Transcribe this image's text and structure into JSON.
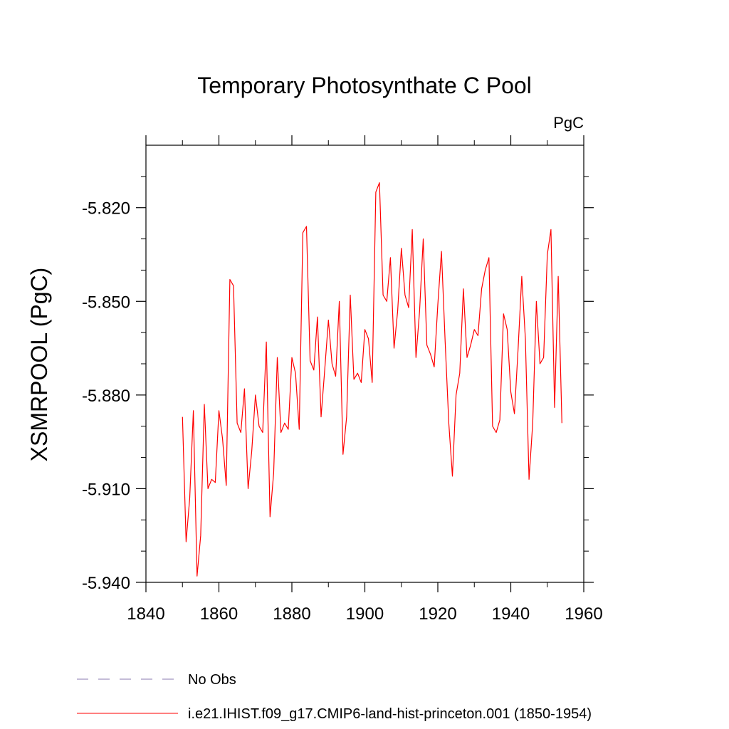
{
  "chart_data": {
    "type": "line",
    "title": "Temporary Photosynthate C Pool",
    "units": "PgC",
    "ylabel": "XSMRPOOL  (PgC)",
    "xlabel": "",
    "xlim": [
      1840,
      1960
    ],
    "ylim": [
      -5.94,
      -5.8
    ],
    "x_ticks": [
      1840,
      1860,
      1880,
      1900,
      1920,
      1940,
      1960
    ],
    "x_tick_labels": [
      "1840",
      "1860",
      "1880",
      "1900",
      "1920",
      "1940",
      "1960"
    ],
    "y_ticks": [
      -5.82,
      -5.85,
      -5.88,
      -5.91,
      -5.94
    ],
    "y_tick_labels": [
      "-5.820",
      "-5.850",
      "-5.880",
      "-5.910",
      "-5.940"
    ],
    "grid": false,
    "legend_position": "bottom",
    "series": [
      {
        "name": "No Obs",
        "color": "#8878b0",
        "style": "dashed",
        "x": [],
        "y": []
      },
      {
        "name": "i.e21.IHIST.f09_g17.CMIP6-land-hist-princeton.001 (1850-1954)",
        "color": "#ff0000",
        "style": "solid",
        "x": [
          1850,
          1851,
          1852,
          1853,
          1854,
          1855,
          1856,
          1857,
          1858,
          1859,
          1860,
          1861,
          1862,
          1863,
          1864,
          1865,
          1866,
          1867,
          1868,
          1869,
          1870,
          1871,
          1872,
          1873,
          1874,
          1875,
          1876,
          1877,
          1878,
          1879,
          1880,
          1881,
          1882,
          1883,
          1884,
          1885,
          1886,
          1887,
          1888,
          1889,
          1890,
          1891,
          1892,
          1893,
          1894,
          1895,
          1896,
          1897,
          1898,
          1899,
          1900,
          1901,
          1902,
          1903,
          1904,
          1905,
          1906,
          1907,
          1908,
          1909,
          1910,
          1911,
          1912,
          1913,
          1914,
          1915,
          1916,
          1917,
          1918,
          1919,
          1920,
          1921,
          1922,
          1923,
          1924,
          1925,
          1926,
          1927,
          1928,
          1929,
          1930,
          1931,
          1932,
          1933,
          1934,
          1935,
          1936,
          1937,
          1938,
          1939,
          1940,
          1941,
          1942,
          1943,
          1944,
          1945,
          1946,
          1947,
          1948,
          1949,
          1950,
          1951,
          1952,
          1953,
          1954
        ],
        "y": [
          -5.887,
          -5.927,
          -5.913,
          -5.885,
          -5.938,
          -5.925,
          -5.883,
          -5.91,
          -5.907,
          -5.908,
          -5.885,
          -5.894,
          -5.909,
          -5.843,
          -5.845,
          -5.889,
          -5.892,
          -5.878,
          -5.91,
          -5.898,
          -5.88,
          -5.89,
          -5.892,
          -5.863,
          -5.919,
          -5.905,
          -5.868,
          -5.892,
          -5.889,
          -5.891,
          -5.868,
          -5.873,
          -5.891,
          -5.828,
          -5.826,
          -5.869,
          -5.872,
          -5.855,
          -5.887,
          -5.872,
          -5.856,
          -5.87,
          -5.874,
          -5.85,
          -5.899,
          -5.887,
          -5.848,
          -5.875,
          -5.873,
          -5.876,
          -5.859,
          -5.862,
          -5.876,
          -5.815,
          -5.812,
          -5.848,
          -5.85,
          -5.836,
          -5.865,
          -5.853,
          -5.833,
          -5.848,
          -5.852,
          -5.827,
          -5.868,
          -5.853,
          -5.83,
          -5.864,
          -5.867,
          -5.871,
          -5.851,
          -5.834,
          -5.863,
          -5.889,
          -5.906,
          -5.88,
          -5.873,
          -5.846,
          -5.868,
          -5.864,
          -5.859,
          -5.861,
          -5.846,
          -5.84,
          -5.836,
          -5.89,
          -5.892,
          -5.888,
          -5.854,
          -5.859,
          -5.879,
          -5.886,
          -5.865,
          -5.842,
          -5.862,
          -5.907,
          -5.889,
          -5.85,
          -5.87,
          -5.868,
          -5.835,
          -5.827,
          -5.884,
          -5.842,
          -5.889
        ]
      }
    ]
  }
}
